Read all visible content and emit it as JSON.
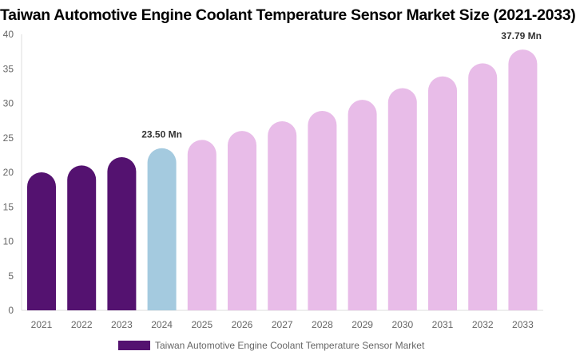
{
  "chart_data": {
    "type": "bar",
    "title": "Taiwan Automotive Engine Coolant Temperature Sensor Market Size (2021-2033)",
    "categories": [
      "2021",
      "2022",
      "2023",
      "2024",
      "2025",
      "2026",
      "2027",
      "2028",
      "2029",
      "2030",
      "2031",
      "2032",
      "2033"
    ],
    "series": [
      {
        "name": "Taiwan Automotive Engine Coolant Temperature Sensor Market",
        "values": [
          20.0,
          21.0,
          22.2,
          23.5,
          24.7,
          26.0,
          27.4,
          28.9,
          30.5,
          32.2,
          33.9,
          35.8,
          37.79
        ]
      }
    ],
    "data_labels": [
      {
        "category": "2024",
        "text": "23.50 Mn"
      },
      {
        "category": "2033",
        "text": "37.79 Mn"
      }
    ],
    "ylim": [
      0,
      40
    ],
    "yticks": [
      0,
      5,
      10,
      15,
      20,
      25,
      30,
      35,
      40
    ],
    "grid": false,
    "legend_position": "bottom",
    "colors": {
      "historical": "#541270",
      "base_year": "#a4cadf",
      "forecast": "#e8bce8",
      "legend": "#541270"
    }
  }
}
